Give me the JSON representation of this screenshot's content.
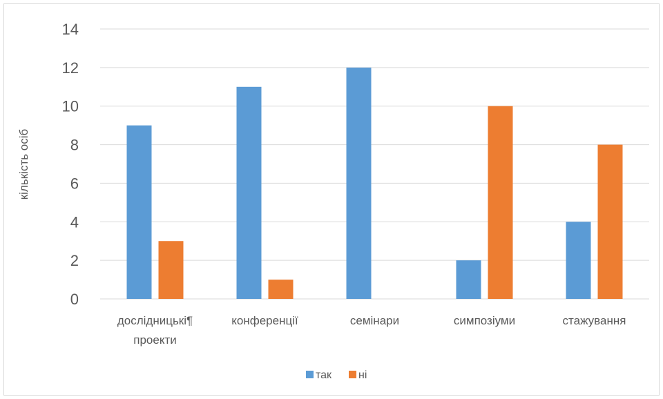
{
  "chart_data": {
    "type": "bar",
    "title": "",
    "xlabel": "",
    "ylabel": "кількість осіб",
    "ylim": [
      0,
      14
    ],
    "yticks": [
      0,
      2,
      4,
      6,
      8,
      10,
      12,
      14
    ],
    "grid": true,
    "legend_position": "bottom",
    "categories": [
      [
        "дослідницькі¶",
        "проекти"
      ],
      [
        "конференції"
      ],
      [
        "семінари"
      ],
      [
        "симпозіуми"
      ],
      [
        "стажування"
      ]
    ],
    "series": [
      {
        "name": "так",
        "color": "#5b9bd5",
        "values": [
          9,
          11,
          12,
          2,
          4
        ]
      },
      {
        "name": "ні",
        "color": "#ed7d31",
        "values": [
          3,
          1,
          0,
          10,
          8
        ]
      }
    ]
  }
}
